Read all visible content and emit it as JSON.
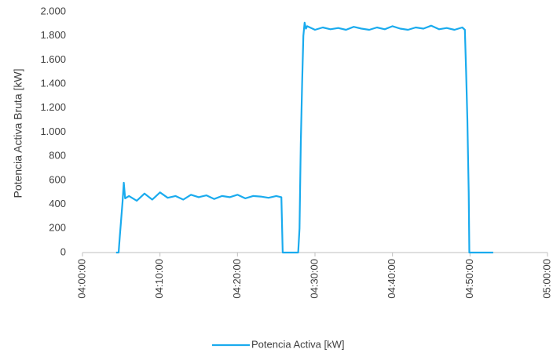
{
  "chart_data": {
    "type": "line",
    "y_label": "Potencia Activa Bruta [kW]",
    "x": [
      "04:04:20",
      "04:04:40",
      "04:04:50",
      "04:05:00",
      "04:05:10",
      "04:05:20",
      "04:05:30",
      "04:06:00",
      "04:07:00",
      "04:08:00",
      "04:09:00",
      "04:10:00",
      "04:11:00",
      "04:12:00",
      "04:13:00",
      "04:14:00",
      "04:15:00",
      "04:16:00",
      "04:17:00",
      "04:18:00",
      "04:19:00",
      "04:20:00",
      "04:21:00",
      "04:22:00",
      "04:23:00",
      "04:24:00",
      "04:25:00",
      "04:25:40",
      "04:25:50",
      "04:27:50",
      "04:28:00",
      "04:28:10",
      "04:28:20",
      "04:28:30",
      "04:28:40",
      "04:28:50",
      "04:29:00",
      "04:30:00",
      "04:31:00",
      "04:32:00",
      "04:33:00",
      "04:34:00",
      "04:35:00",
      "04:36:00",
      "04:37:00",
      "04:38:00",
      "04:39:00",
      "04:40:00",
      "04:41:00",
      "04:42:00",
      "04:43:00",
      "04:44:00",
      "04:45:00",
      "04:46:00",
      "04:47:00",
      "04:48:00",
      "04:49:00",
      "04:49:20",
      "04:49:30",
      "04:49:40",
      "04:49:50",
      "04:49:55",
      "04:53:00"
    ],
    "series": [
      {
        "name": "Potencia Activa [kW]",
        "color": "#1aabee",
        "values": [
          0,
          0,
          150,
          280,
          420,
          580,
          450,
          470,
          430,
          490,
          440,
          500,
          455,
          470,
          440,
          480,
          460,
          475,
          445,
          470,
          460,
          480,
          450,
          470,
          465,
          455,
          470,
          460,
          0,
          0,
          200,
          900,
          1400,
          1800,
          1910,
          1860,
          1880,
          1850,
          1870,
          1855,
          1865,
          1850,
          1875,
          1860,
          1850,
          1870,
          1855,
          1880,
          1860,
          1850,
          1870,
          1860,
          1885,
          1855,
          1865,
          1850,
          1870,
          1850,
          1500,
          1100,
          500,
          0,
          0
        ]
      }
    ],
    "xlim": [
      "04:00:00",
      "05:00:00"
    ],
    "xticks": [
      "04:00:00",
      "04:10:00",
      "04:20:00",
      "04:30:00",
      "04:40:00",
      "04:50:00",
      "05:00:00"
    ],
    "ylim": [
      0,
      2000
    ],
    "yticks": [
      0,
      200,
      400,
      600,
      800,
      {
        "value": 1000,
        "label": "1.000"
      },
      {
        "value": 1200,
        "label": "1.200"
      },
      {
        "value": 1400,
        "label": "1.400"
      },
      {
        "value": 1600,
        "label": "1.600"
      },
      {
        "value": 1800,
        "label": "1.800"
      },
      {
        "value": 2000,
        "label": "2.000"
      }
    ],
    "grid": false,
    "legend": "bottom"
  }
}
